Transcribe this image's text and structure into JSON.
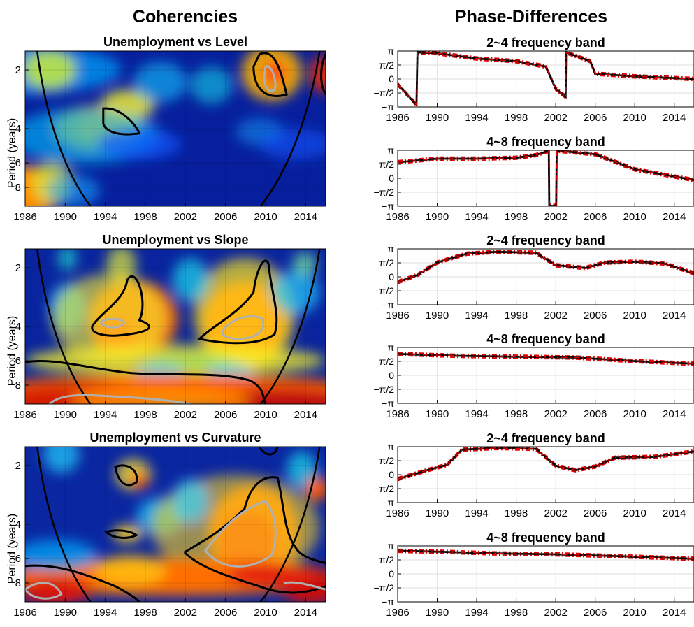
{
  "columns": {
    "left_title": "Coherencies",
    "right_title": "Phase-Differences"
  },
  "chart_data": [
    {
      "type": "heatmap",
      "title": "Unemployment vs Level",
      "ylabel": "Period (years)",
      "xlim": [
        1986,
        2016
      ],
      "x_ticks": [
        "1986",
        "1990",
        "1994",
        "1998",
        "2002",
        "2006",
        "2010",
        "2014"
      ],
      "y_ticks": [
        "2",
        "4",
        "6",
        "8"
      ],
      "y_scale": "log2",
      "ylim": [
        1.6,
        10
      ],
      "colormap": "jet"
    },
    {
      "type": "line",
      "title": "2~4 frequency band",
      "xlim": [
        1986,
        2016
      ],
      "x_ticks": [
        "1986",
        "1990",
        "1994",
        "1998",
        "2002",
        "2006",
        "2010",
        "2014"
      ],
      "y_ticks": [
        "π",
        "π/2",
        "0",
        "−π/2",
        "−π"
      ],
      "ylim": [
        -3.1416,
        3.1416
      ],
      "x": [
        1986,
        1987.9,
        1988.0,
        1990,
        1994,
        1998,
        2001,
        2002,
        2003,
        2003.05,
        2005.5,
        2006,
        2010,
        2016
      ],
      "series": [
        {
          "values": [
            -0.6,
            -2.9,
            3.0,
            2.9,
            2.3,
            2.0,
            1.4,
            -1.1,
            -2.0,
            3.0,
            2.0,
            0.6,
            0.3,
            0.0
          ]
        }
      ]
    },
    {
      "type": "line",
      "title": "4~8 frequency band",
      "xlim": [
        1986,
        2016
      ],
      "x_ticks": [
        "1986",
        "1990",
        "1994",
        "1998",
        "2002",
        "2006",
        "2010",
        "2014"
      ],
      "y_ticks": [
        "π",
        "π/2",
        "0",
        "−π/2",
        "−π"
      ],
      "ylim": [
        -3.1416,
        3.1416
      ],
      "x": [
        1986,
        1990,
        1994,
        1998,
        2000,
        2001.3,
        2001.35,
        2002.05,
        2002.1,
        2006,
        2010,
        2016
      ],
      "series": [
        {
          "values": [
            1.8,
            2.2,
            2.2,
            2.3,
            2.6,
            3.1,
            -3.1,
            -3.1,
            3.1,
            2.7,
            1.0,
            -0.2
          ]
        }
      ]
    },
    {
      "type": "heatmap",
      "title": "Unemployment vs Slope",
      "ylabel": "Period (years)",
      "xlim": [
        1986,
        2016
      ],
      "x_ticks": [
        "1986",
        "1990",
        "1994",
        "1998",
        "2002",
        "2006",
        "2010",
        "2014"
      ],
      "y_ticks": [
        "2",
        "4",
        "6",
        "8"
      ],
      "y_scale": "log2",
      "ylim": [
        1.6,
        10
      ],
      "colormap": "jet"
    },
    {
      "type": "line",
      "title": "2~4 frequency band",
      "xlim": [
        1986,
        2016
      ],
      "x_ticks": [
        "1986",
        "1990",
        "1994",
        "1998",
        "2002",
        "2006",
        "2010",
        "2014"
      ],
      "y_ticks": [
        "π",
        "π/2",
        "0",
        "−π/2",
        "−π"
      ],
      "ylim": [
        -3.1416,
        3.1416
      ],
      "x": [
        1986,
        1988,
        1990,
        1993,
        1996,
        2000,
        2002,
        2005,
        2007,
        2010,
        2013,
        2016
      ],
      "series": [
        {
          "values": [
            -0.6,
            0.2,
            1.6,
            2.6,
            2.8,
            2.7,
            1.3,
            1.0,
            1.6,
            1.7,
            1.5,
            0.4
          ]
        }
      ]
    },
    {
      "type": "line",
      "title": "4~8 frequency band",
      "xlim": [
        1986,
        2016
      ],
      "x_ticks": [
        "1986",
        "1990",
        "1994",
        "1998",
        "2002",
        "2006",
        "2010",
        "2014"
      ],
      "y_ticks": [
        "π",
        "π/2",
        "0",
        "−π/2",
        "−π"
      ],
      "ylim": [
        -3.1416,
        3.1416
      ],
      "x": [
        1986,
        1992,
        1998,
        2004,
        2010,
        2016
      ],
      "series": [
        {
          "values": [
            2.4,
            2.2,
            2.1,
            2.0,
            1.6,
            1.3
          ]
        }
      ]
    },
    {
      "type": "heatmap",
      "title": "Unemployment vs Curvature",
      "ylabel": "Period (years)",
      "xlim": [
        1986,
        2016
      ],
      "x_ticks": [
        "1986",
        "1990",
        "1994",
        "1998",
        "2002",
        "2006",
        "2010",
        "2014"
      ],
      "y_ticks": [
        "2",
        "4",
        "6",
        "8"
      ],
      "y_scale": "log2",
      "ylim": [
        1.6,
        10
      ],
      "colormap": "jet"
    },
    {
      "type": "line",
      "title": "2~4 frequency band",
      "xlim": [
        1986,
        2016
      ],
      "x_ticks": [
        "1986",
        "1990",
        "1994",
        "1998",
        "2002",
        "2006",
        "2010",
        "2014"
      ],
      "y_ticks": [
        "π",
        "π/2",
        "0",
        "−π/2",
        "−π"
      ],
      "ylim": [
        -3.1416,
        3.1416
      ],
      "x": [
        1986,
        1989,
        1991,
        1992.5,
        1996,
        2000,
        2002,
        2004,
        2006,
        2008,
        2012,
        2016
      ],
      "series": [
        {
          "values": [
            -0.5,
            0.5,
            1.1,
            2.8,
            3.0,
            2.9,
            1.0,
            0.5,
            0.9,
            1.9,
            2.0,
            2.6
          ]
        }
      ]
    },
    {
      "type": "line",
      "title": "4~8 frequency band",
      "xlim": [
        1986,
        2016
      ],
      "x_ticks": [
        "1986",
        "1990",
        "1994",
        "1998",
        "2002",
        "2006",
        "2010",
        "2014"
      ],
      "y_ticks": [
        "π",
        "π/2",
        "0",
        "−π/2",
        "−π"
      ],
      "ylim": [
        -3.1416,
        3.1416
      ],
      "x": [
        1986,
        1990,
        1996,
        2002,
        2008,
        2016
      ],
      "series": [
        {
          "values": [
            2.6,
            2.5,
            2.3,
            2.2,
            2.0,
            1.7
          ]
        }
      ]
    }
  ]
}
